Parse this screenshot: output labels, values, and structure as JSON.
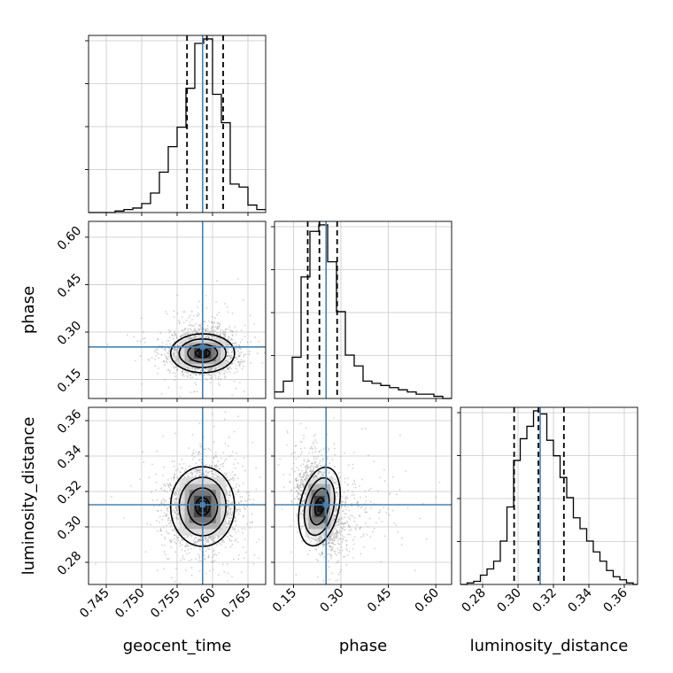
{
  "chart_data": {
    "type": "corner",
    "parameters": [
      "geocent_time",
      "phase",
      "luminosity_distance"
    ],
    "truths": {
      "geocent_time": 0.7586,
      "phase": 0.253,
      "luminosity_distance": 0.3125
    },
    "ranges": {
      "geocent_time": [
        0.7425,
        0.7675
      ],
      "phase": [
        0.09,
        0.65
      ],
      "luminosity_distance": [
        0.2675,
        0.3675
      ]
    },
    "ticks": {
      "geocent_time": [
        0.745,
        0.75,
        0.755,
        0.76,
        0.765
      ],
      "phase": [
        0.15,
        0.3,
        0.45,
        0.6
      ],
      "luminosity_distance": [
        0.28,
        0.3,
        0.32,
        0.34,
        0.36
      ]
    },
    "tick_labels": {
      "geocent_time": [
        "0.745",
        "0.750",
        "0.755",
        "0.760",
        "0.765"
      ],
      "phase": [
        "0.15",
        "0.30",
        "0.45",
        "0.60"
      ],
      "luminosity_distance": [
        "0.28",
        "0.30",
        "0.32",
        "0.34",
        "0.36"
      ]
    },
    "quantiles": {
      "geocent_time": [
        0.7564,
        0.7592,
        0.7615
      ],
      "phase": [
        0.195,
        0.232,
        0.288
      ],
      "luminosity_distance": [
        0.2978,
        0.3115,
        0.3259
      ]
    },
    "histograms": {
      "geocent_time": {
        "edges": [
          0.7425,
          0.74375,
          0.745,
          0.74625,
          0.7475,
          0.74875,
          0.75,
          0.75125,
          0.7525,
          0.75375,
          0.755,
          0.75625,
          0.7575,
          0.75875,
          0.76,
          0.76125,
          0.7625,
          0.76375,
          0.765,
          0.76625,
          0.7675
        ],
        "counts": [
          0,
          0,
          0,
          1,
          2,
          3,
          6,
          13,
          27,
          44,
          57,
          83,
          113,
          116,
          79,
          60,
          19,
          17,
          5,
          2
        ]
      },
      "phase": {
        "edges": [
          0.09,
          0.118,
          0.146,
          0.174,
          0.202,
          0.23,
          0.258,
          0.286,
          0.314,
          0.342,
          0.37,
          0.398,
          0.426,
          0.454,
          0.482,
          0.51,
          0.538,
          0.566,
          0.594,
          0.622,
          0.65
        ],
        "counts": [
          3,
          8,
          19,
          56,
          77,
          80,
          63,
          40,
          20,
          15,
          8,
          7,
          6,
          5,
          4,
          3,
          2,
          2,
          1,
          0
        ]
      },
      "luminosity_distance": {
        "edges": [
          0.2675,
          0.27125,
          0.275,
          0.27875,
          0.2825,
          0.28625,
          0.29,
          0.29375,
          0.2975,
          0.30125,
          0.305,
          0.30875,
          0.3125,
          0.31625,
          0.32,
          0.32375,
          0.3275,
          0.33125,
          0.335,
          0.33875,
          0.3425,
          0.34625,
          0.35,
          0.35375,
          0.3575,
          0.36125,
          0.365,
          0.3675
        ],
        "counts": [
          0,
          1,
          2,
          6,
          10,
          15,
          28,
          50,
          80,
          94,
          102,
          112,
          110,
          93,
          83,
          69,
          56,
          43,
          36,
          28,
          21,
          15,
          9,
          5,
          3,
          1,
          0
        ]
      }
    },
    "scatter_center": {
      "phase_vs_geocent_time": {
        "x": 0.7586,
        "y": 0.233
      },
      "luminosity_distance_vs_geocent_time": {
        "x": 0.7586,
        "y": 0.3115
      },
      "luminosity_distance_vs_phase": {
        "x": 0.232,
        "y": 0.3115
      }
    },
    "grid": true,
    "colors": {
      "truth": "#4682b4",
      "histogram": "#000000",
      "contour": "#000000",
      "scatter": "#9a9a9a",
      "grid": "#c8c8c8",
      "density_levels": [
        "#dcdcdc",
        "#a8a8a8",
        "#6f6f6f",
        "#3a3a3a",
        "#111111"
      ]
    }
  }
}
